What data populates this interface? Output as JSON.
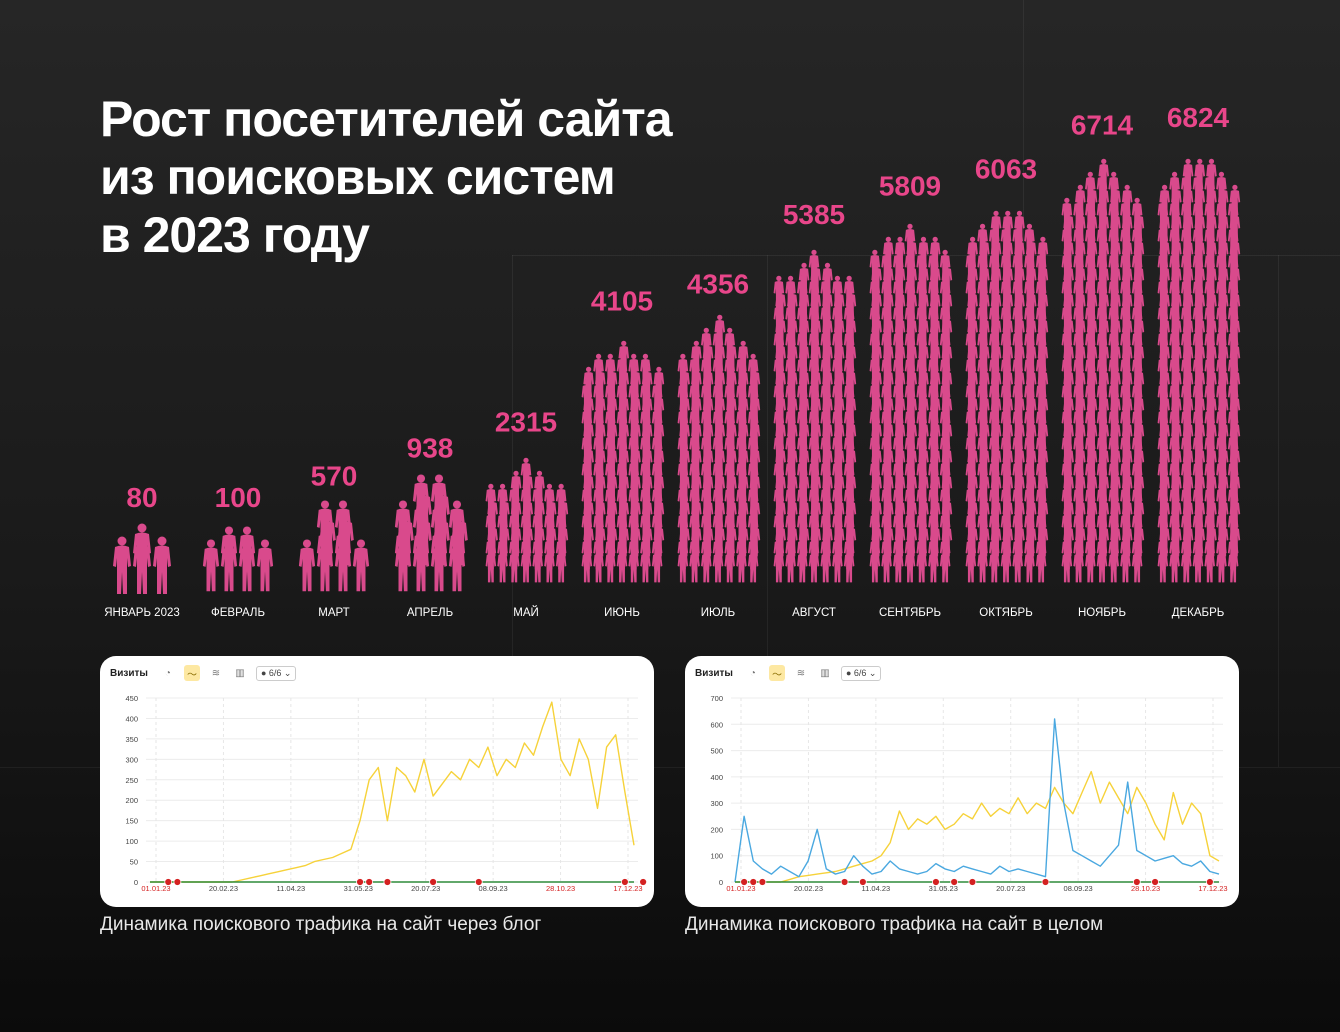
{
  "title": {
    "line1": "Рост посетителей сайта",
    "line2": "из поисковых систем",
    "line3": "в 2023 году"
  },
  "colors": {
    "accent": "#e8468a",
    "figure": "#d94a8c",
    "chart_yellow": "#f6d23a",
    "chart_blue": "#4aa8e0",
    "chart_green": "#2e8b3a",
    "marker_red": "#d42121"
  },
  "chart_data": [
    {
      "type": "bar",
      "title": "Рост посетителей сайта из поисковых систем в 2023 году",
      "categories": [
        "ЯНВАРЬ 2023",
        "ФЕВРАЛЬ",
        "МАРТ",
        "АПРЕЛЬ",
        "МАЙ",
        "ИЮНЬ",
        "ИЮЛЬ",
        "АВГУСТ",
        "СЕНТЯБРЬ",
        "ОКТЯБРЬ",
        "НОЯБРЬ",
        "ДЕКАБРЬ"
      ],
      "values": [
        80,
        100,
        570,
        938,
        2315,
        4105,
        4356,
        5385,
        5809,
        6063,
        6714,
        6824
      ],
      "mark": "pictogram-people",
      "xlabel": "",
      "ylabel": ""
    },
    {
      "type": "line",
      "toolbar_label": "Визиты",
      "segment_selector": "6/6",
      "caption": "Динамика поискового трафика на сайт через блог",
      "ylim": [
        0,
        450
      ],
      "y_ticks": [
        "450",
        "400",
        "350",
        "300",
        "250",
        "200",
        "150",
        "100",
        "50",
        "0"
      ],
      "x_ticks": [
        "01.01.23",
        "20.02.23",
        "11.04.23",
        "31.05.23",
        "20.07.23",
        "08.09.23",
        "28.10.23",
        "17.12.23"
      ],
      "red_ticks": [
        "01.01.23",
        "28.10.23",
        "17.12.23"
      ],
      "series": [
        {
          "name": "blog_visits",
          "color": "yellow",
          "values": [
            0,
            0,
            0,
            0,
            0,
            0,
            0,
            0,
            0,
            0,
            5,
            10,
            15,
            20,
            25,
            30,
            35,
            40,
            50,
            55,
            60,
            70,
            80,
            150,
            250,
            280,
            150,
            280,
            260,
            220,
            300,
            210,
            240,
            270,
            250,
            300,
            280,
            330,
            260,
            300,
            280,
            340,
            310,
            380,
            440,
            300,
            260,
            350,
            300,
            180,
            330,
            360,
            220,
            90
          ]
        },
        {
          "name": "baseline",
          "color": "green",
          "values": [
            0,
            0,
            0,
            0,
            0,
            0,
            0,
            0,
            0,
            0,
            0,
            0,
            0,
            0,
            0,
            0,
            0,
            0,
            0,
            0,
            0,
            0,
            0,
            0,
            0,
            0,
            0,
            0,
            0,
            0,
            0,
            0,
            0,
            0,
            0,
            0,
            0,
            0,
            0,
            0,
            0,
            0,
            0,
            0,
            0,
            0,
            0,
            0,
            0,
            0,
            0,
            0,
            0,
            0
          ]
        }
      ],
      "event_markers": [
        2,
        3,
        23,
        24,
        26,
        31,
        36,
        52,
        54
      ]
    },
    {
      "type": "line",
      "toolbar_label": "Визиты",
      "segment_selector": "6/6",
      "caption": "Динамика поискового трафика на сайт в целом",
      "ylim": [
        0,
        700
      ],
      "y_ticks": [
        "700",
        "600",
        "500",
        "400",
        "300",
        "200",
        "100",
        "0"
      ],
      "x_ticks": [
        "01.01.23",
        "20.02.23",
        "11.04.23",
        "31.05.23",
        "20.07.23",
        "08.09.23",
        "28.10.23",
        "17.12.23"
      ],
      "red_ticks": [
        "01.01.23",
        "28.10.23",
        "17.12.23"
      ],
      "series": [
        {
          "name": "total_visits",
          "color": "yellow",
          "values": [
            0,
            0,
            0,
            0,
            0,
            0,
            10,
            20,
            25,
            30,
            35,
            40,
            50,
            60,
            70,
            80,
            100,
            150,
            270,
            200,
            240,
            220,
            250,
            200,
            220,
            260,
            240,
            300,
            250,
            280,
            260,
            320,
            260,
            300,
            280,
            360,
            300,
            260,
            340,
            420,
            300,
            380,
            320,
            260,
            360,
            300,
            220,
            160,
            340,
            220,
            300,
            260,
            100,
            80
          ]
        },
        {
          "name": "other_source",
          "color": "blue",
          "values": [
            0,
            250,
            80,
            50,
            30,
            60,
            40,
            20,
            80,
            200,
            50,
            30,
            40,
            100,
            60,
            30,
            40,
            80,
            50,
            40,
            30,
            40,
            70,
            50,
            40,
            60,
            50,
            40,
            30,
            60,
            40,
            50,
            40,
            30,
            20,
            620,
            300,
            120,
            100,
            80,
            60,
            100,
            140,
            380,
            120,
            100,
            80,
            90,
            100,
            70,
            60,
            80,
            40,
            30
          ]
        },
        {
          "name": "baseline",
          "color": "green",
          "values": [
            0,
            0,
            0,
            0,
            0,
            0,
            0,
            0,
            0,
            0,
            0,
            0,
            0,
            0,
            0,
            0,
            0,
            0,
            0,
            0,
            0,
            0,
            0,
            0,
            0,
            0,
            0,
            0,
            0,
            0,
            0,
            0,
            0,
            0,
            0,
            0,
            0,
            0,
            0,
            0,
            0,
            0,
            0,
            0,
            0,
            0,
            0,
            0,
            0,
            0,
            0,
            0,
            0,
            0
          ]
        }
      ],
      "event_markers": [
        1,
        2,
        3,
        12,
        14,
        22,
        24,
        26,
        34,
        44,
        46,
        52
      ]
    }
  ]
}
